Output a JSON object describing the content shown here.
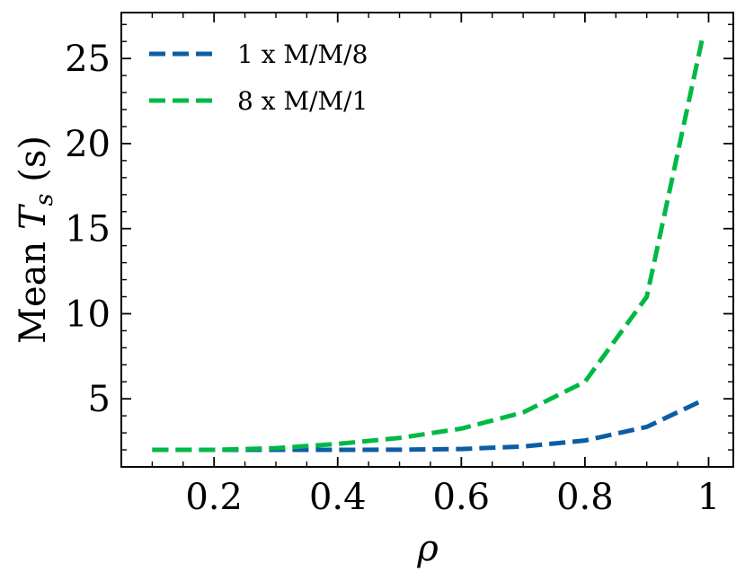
{
  "chart_data": {
    "type": "line",
    "title": "",
    "xlabel": "ρ",
    "ylabel": {
      "prefix": "Mean ",
      "var": "T",
      "sub": "s",
      "suffix": " (s)"
    },
    "xlim": [
      0.05,
      1.04
    ],
    "ylim": [
      1.0,
      27.7
    ],
    "xticks": [
      0.2,
      0.4,
      0.6,
      0.8,
      1.0
    ],
    "xtick_labels": [
      "0.2",
      "0.4",
      "0.6",
      "0.8",
      "1"
    ],
    "yticks": [
      5,
      10,
      15,
      20,
      25
    ],
    "ytick_labels": [
      "5",
      "10",
      "15",
      "20",
      "25"
    ],
    "legend_position": "top-left",
    "x": [
      0.1,
      0.2,
      0.3,
      0.4,
      0.5,
      0.6,
      0.7,
      0.8,
      0.9,
      0.99
    ],
    "series": [
      {
        "name": "1 x M/M/8",
        "color": "#0C5DA5",
        "style": "dashed",
        "values": [
          2.0,
          2.0,
          2.0,
          2.0,
          2.01,
          2.05,
          2.2,
          2.55,
          3.35,
          4.9
        ]
      },
      {
        "name": "8 x M/M/1",
        "color": "#00B945",
        "style": "dashed",
        "values": [
          2.0,
          2.0,
          2.1,
          2.35,
          2.7,
          3.25,
          4.2,
          6.0,
          11.0,
          26.2
        ]
      }
    ]
  }
}
